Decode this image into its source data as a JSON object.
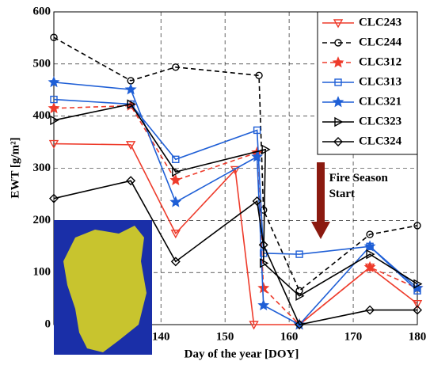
{
  "chart_data": {
    "type": "line",
    "x_label": "Day of the year [DOY]",
    "y_label": "EWT [g/m²]",
    "xlim": [
      123.3,
      180
    ],
    "xticks": [
      140,
      150,
      160,
      170,
      180
    ],
    "ylim": [
      0,
      600
    ],
    "yticks": [
      0,
      100,
      200,
      300,
      400,
      500,
      600
    ],
    "grid": true,
    "legend": "upper right",
    "annotation": {
      "lines": [
        "Fire Season",
        "Start"
      ],
      "x": 165
    },
    "series": [
      {
        "name": "CLC243",
        "color": "#ee3b2b",
        "marker": "triangle-down",
        "dashed": false,
        "x": [
          123.3,
          135.3,
          142.3,
          151.6,
          154.5,
          161.6,
          172.6,
          180
        ],
        "values": [
          347,
          345,
          175,
          297,
          0,
          0,
          110,
          40
        ]
      },
      {
        "name": "CLC244",
        "color": "#000000",
        "marker": "circle",
        "dashed": true,
        "x": [
          123.3,
          135.3,
          142.3,
          155.3,
          156,
          161.6,
          172.6,
          180
        ],
        "values": [
          551,
          468,
          494,
          478,
          220,
          65,
          173,
          190
        ]
      },
      {
        "name": "CLC312",
        "color": "#ee3b2b",
        "marker": "star",
        "dashed": true,
        "x": [
          123.3,
          135.3,
          142.3,
          155,
          156,
          161.6,
          172.6,
          180
        ],
        "values": [
          415,
          420,
          277,
          330,
          70,
          0,
          110,
          70
        ]
      },
      {
        "name": "CLC313",
        "color": "#1f5fd6",
        "marker": "square",
        "dashed": false,
        "x": [
          123.3,
          135.3,
          142.3,
          155,
          156,
          161.6,
          172.6,
          180
        ],
        "values": [
          432,
          423,
          317,
          373,
          137,
          135,
          150,
          65
        ]
      },
      {
        "name": "CLC321",
        "color": "#1f5fd6",
        "marker": "star",
        "dashed": false,
        "x": [
          123.3,
          135.3,
          142.3,
          155,
          156,
          161.6,
          172.6,
          180
        ],
        "values": [
          465,
          451,
          235,
          322,
          37,
          0,
          150,
          70
        ]
      },
      {
        "name": "CLC323",
        "color": "#000000",
        "marker": "triangle-right",
        "dashed": false,
        "x": [
          123.3,
          135.3,
          142.3,
          156.3,
          156,
          161.6,
          172.6,
          180
        ],
        "values": [
          392,
          423,
          293,
          336,
          118,
          55,
          135,
          78
        ]
      },
      {
        "name": "CLC324",
        "color": "#000000",
        "marker": "diamond",
        "dashed": false,
        "x": [
          123.3,
          135.3,
          142.3,
          155,
          156,
          161.6,
          172.6,
          180
        ],
        "values": [
          242,
          276,
          121,
          237,
          153,
          0,
          28,
          28
        ]
      }
    ]
  }
}
